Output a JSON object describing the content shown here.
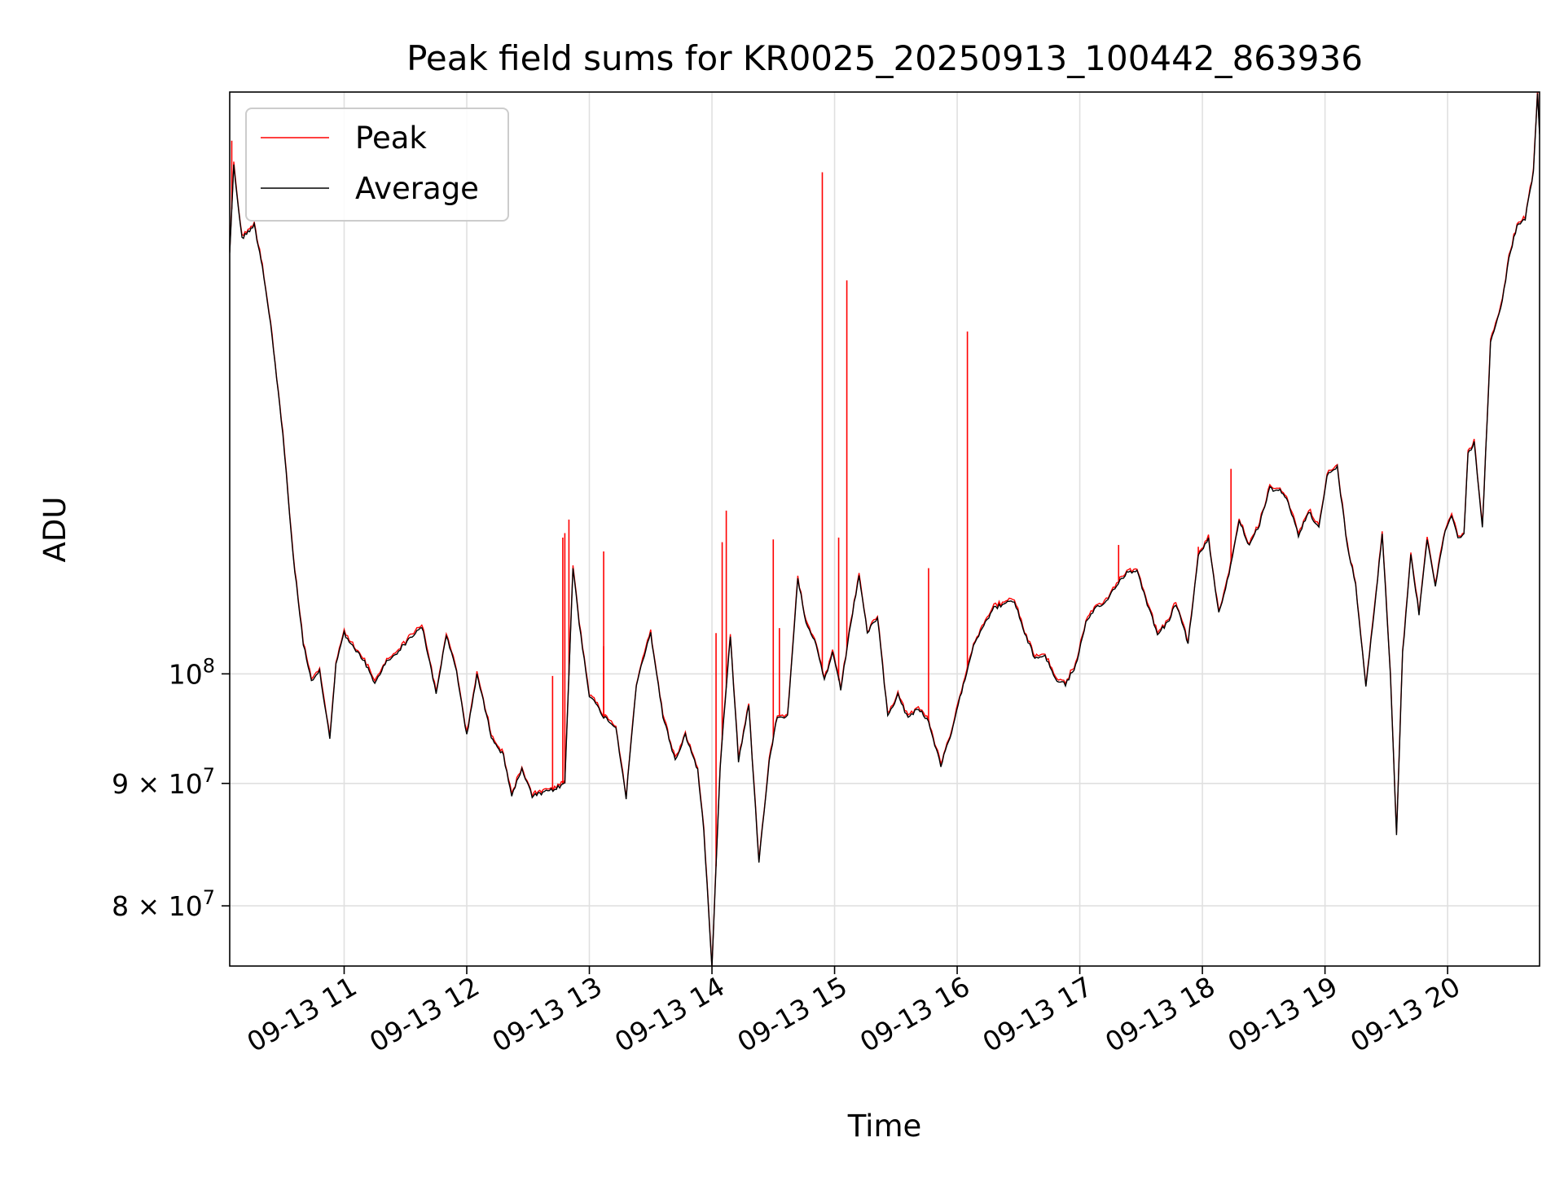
{
  "chart_data": {
    "type": "line",
    "title": "Peak field sums for KR0025_20250913_100442_863936",
    "xlabel": "Time",
    "ylabel": "ADU",
    "y_scale": "log",
    "x_range": [
      "2025-09-13 10:04",
      "2025-09-13 20:45"
    ],
    "ylim": [
      75500000,
      175000000
    ],
    "grid": true,
    "legend": {
      "placement": "top-left",
      "entries": [
        "Peak",
        "Average"
      ]
    },
    "x_ticks": [
      "09-13 11",
      "09-13 12",
      "09-13 13",
      "09-13 14",
      "09-13 15",
      "09-13 16",
      "09-13 17",
      "09-13 18",
      "09-13 19",
      "09-13 20"
    ],
    "y_ticks": [
      {
        "base": "10",
        "exp": "8",
        "value": 100000000
      },
      {
        "base": "9 × 10",
        "exp": "7",
        "value": 90000000
      },
      {
        "base": "8 × 10",
        "exp": "7",
        "value": 80000000
      }
    ],
    "colors": {
      "peak": "#ff0000",
      "average": "#000000",
      "grid": "#e0e0e0"
    },
    "average": {
      "name": "Average",
      "time": [
        "2025-09-13 10:04",
        "2025-09-13 10:06",
        "2025-09-13 10:10",
        "2025-09-13 10:16",
        "2025-09-13 10:18",
        "2025-09-13 10:20",
        "2025-09-13 10:24",
        "2025-09-13 10:30",
        "2025-09-13 10:35",
        "2025-09-13 10:40",
        "2025-09-13 10:44",
        "2025-09-13 10:48",
        "2025-09-13 10:53",
        "2025-09-13 10:56",
        "2025-09-13 11:00",
        "2025-09-13 11:05",
        "2025-09-13 11:10",
        "2025-09-13 11:15",
        "2025-09-13 11:20",
        "2025-09-13 11:25",
        "2025-09-13 11:30",
        "2025-09-13 11:38",
        "2025-09-13 11:45",
        "2025-09-13 11:50",
        "2025-09-13 11:55",
        "2025-09-13 12:00",
        "2025-09-13 12:05",
        "2025-09-13 12:12",
        "2025-09-13 12:18",
        "2025-09-13 12:22",
        "2025-09-13 12:27",
        "2025-09-13 12:32",
        "2025-09-13 12:38",
        "2025-09-13 12:43",
        "2025-09-13 12:48",
        "2025-09-13 12:52",
        "2025-09-13 12:55",
        "2025-09-13 13:00",
        "2025-09-13 13:07",
        "2025-09-13 13:13",
        "2025-09-13 13:18",
        "2025-09-13 13:23",
        "2025-09-13 13:30",
        "2025-09-13 13:36",
        "2025-09-13 13:42",
        "2025-09-13 13:47",
        "2025-09-13 13:53",
        "2025-09-13 13:56",
        "2025-09-13 14:00",
        "2025-09-13 14:04",
        "2025-09-13 14:09",
        "2025-09-13 14:13",
        "2025-09-13 14:18",
        "2025-09-13 14:23",
        "2025-09-13 14:28",
        "2025-09-13 14:32",
        "2025-09-13 14:37",
        "2025-09-13 14:42",
        "2025-09-13 14:46",
        "2025-09-13 14:51",
        "2025-09-13 14:55",
        "2025-09-13 14:59",
        "2025-09-13 15:03",
        "2025-09-13 15:08",
        "2025-09-13 15:12",
        "2025-09-13 15:16",
        "2025-09-13 15:21",
        "2025-09-13 15:26",
        "2025-09-13 15:31",
        "2025-09-13 15:36",
        "2025-09-13 15:41",
        "2025-09-13 15:46",
        "2025-09-13 15:52",
        "2025-09-13 15:58",
        "2025-09-13 16:03",
        "2025-09-13 16:08",
        "2025-09-13 16:13",
        "2025-09-13 16:18",
        "2025-09-13 16:23",
        "2025-09-13 16:28",
        "2025-09-13 16:33",
        "2025-09-13 16:38",
        "2025-09-13 16:43",
        "2025-09-13 16:48",
        "2025-09-13 16:53",
        "2025-09-13 16:58",
        "2025-09-13 17:03",
        "2025-09-13 17:08",
        "2025-09-13 17:13",
        "2025-09-13 17:18",
        "2025-09-13 17:23",
        "2025-09-13 17:28",
        "2025-09-13 17:33",
        "2025-09-13 17:38",
        "2025-09-13 17:43",
        "2025-09-13 17:47",
        "2025-09-13 17:53",
        "2025-09-13 17:58",
        "2025-09-13 18:03",
        "2025-09-13 18:08",
        "2025-09-13 18:13",
        "2025-09-13 18:18",
        "2025-09-13 18:23",
        "2025-09-13 18:28",
        "2025-09-13 18:33",
        "2025-09-13 18:38",
        "2025-09-13 18:42",
        "2025-09-13 18:47",
        "2025-09-13 18:52",
        "2025-09-13 18:57",
        "2025-09-13 19:01",
        "2025-09-13 19:06",
        "2025-09-13 19:11",
        "2025-09-13 19:15",
        "2025-09-13 19:20",
        "2025-09-13 19:25",
        "2025-09-13 19:28",
        "2025-09-13 19:32",
        "2025-09-13 19:35",
        "2025-09-13 19:38",
        "2025-09-13 19:42",
        "2025-09-13 19:46",
        "2025-09-13 19:50",
        "2025-09-13 19:54",
        "2025-09-13 19:58",
        "2025-09-13 20:02",
        "2025-09-13 20:05",
        "2025-09-13 20:08",
        "2025-09-13 20:10",
        "2025-09-13 20:13",
        "2025-09-13 20:17",
        "2025-09-13 20:21",
        "2025-09-13 20:26",
        "2025-09-13 20:30",
        "2025-09-13 20:34",
        "2025-09-13 20:38",
        "2025-09-13 20:42",
        "2025-09-13 20:44",
        "2025-09-13 20:45"
      ],
      "values": [
        150000000,
        163000000,
        152000000,
        154000000,
        151000000,
        148000000,
        140000000,
        126000000,
        112000000,
        103000000,
        99200000,
        100200000,
        94000000,
        101000000,
        104000000,
        102400000,
        101200000,
        99000000,
        101000000,
        101900000,
        103000000,
        104700000,
        98200000,
        103700000,
        100300000,
        94200000,
        100000000,
        94200000,
        92400000,
        89000000,
        91200000,
        88900000,
        89200000,
        89500000,
        90000000,
        110800000,
        105000000,
        98000000,
        96000000,
        95000000,
        88800000,
        99000000,
        104000000,
        96000000,
        92000000,
        94300000,
        91200000,
        86000000,
        75500000,
        91500000,
        103800000,
        92000000,
        97000000,
        83500000,
        92000000,
        96000000,
        96000000,
        109700000,
        104900000,
        102800000,
        99400000,
        102000000,
        98500000,
        105000000,
        110000000,
        104000000,
        105600000,
        96000000,
        98000000,
        95800000,
        96800000,
        95500000,
        91500000,
        95000000,
        99000000,
        102800000,
        104900000,
        106500000,
        107000000,
        107200000,
        104000000,
        101500000,
        101800000,
        99500000,
        99000000,
        100800000,
        105000000,
        106500000,
        107200000,
        109000000,
        110200000,
        110500000,
        107000000,
        104000000,
        105000000,
        107000000,
        103000000,
        112000000,
        113800000,
        106000000,
        110000000,
        116000000,
        113000000,
        115500000,
        119500000,
        119200000,
        118000000,
        114200000,
        117000000,
        115000000,
        121000000,
        122000000,
        113000000,
        109000000,
        98900000,
        108000000,
        114500000,
        100000000,
        85800000,
        102000000,
        112000000,
        106000000,
        114000000,
        108800000,
        114000000,
        116500000,
        114000000,
        114500000,
        123500000,
        125000000,
        115000000,
        137500000,
        142000000,
        149000000,
        154000000,
        155000000,
        162000000,
        175000000,
        168000000
      ]
    },
    "peak_spikes": {
      "name": "Peak",
      "time": [
        "2025-09-13 10:05",
        "2025-09-13 12:42",
        "2025-09-13 12:47",
        "2025-09-13 12:48",
        "2025-09-13 12:50",
        "2025-09-13 13:07",
        "2025-09-13 13:07",
        "2025-09-13 14:02",
        "2025-09-13 14:05",
        "2025-09-13 14:07",
        "2025-09-13 14:30",
        "2025-09-13 14:33",
        "2025-09-13 14:54",
        "2025-09-13 15:02",
        "2025-09-13 15:06",
        "2025-09-13 15:46",
        "2025-09-13 16:05",
        "2025-09-13 17:19",
        "2025-09-13 17:58",
        "2025-09-13 18:14"
      ],
      "values": [
        167000000,
        99800000,
        114000000,
        114500000,
        116000000,
        102700000,
        112500000,
        104000000,
        113500000,
        117000000,
        113800000,
        104500000,
        162000000,
        114000000,
        146000000,
        110700000,
        139000000,
        113200000,
        113000000,
        121800000
      ]
    }
  }
}
